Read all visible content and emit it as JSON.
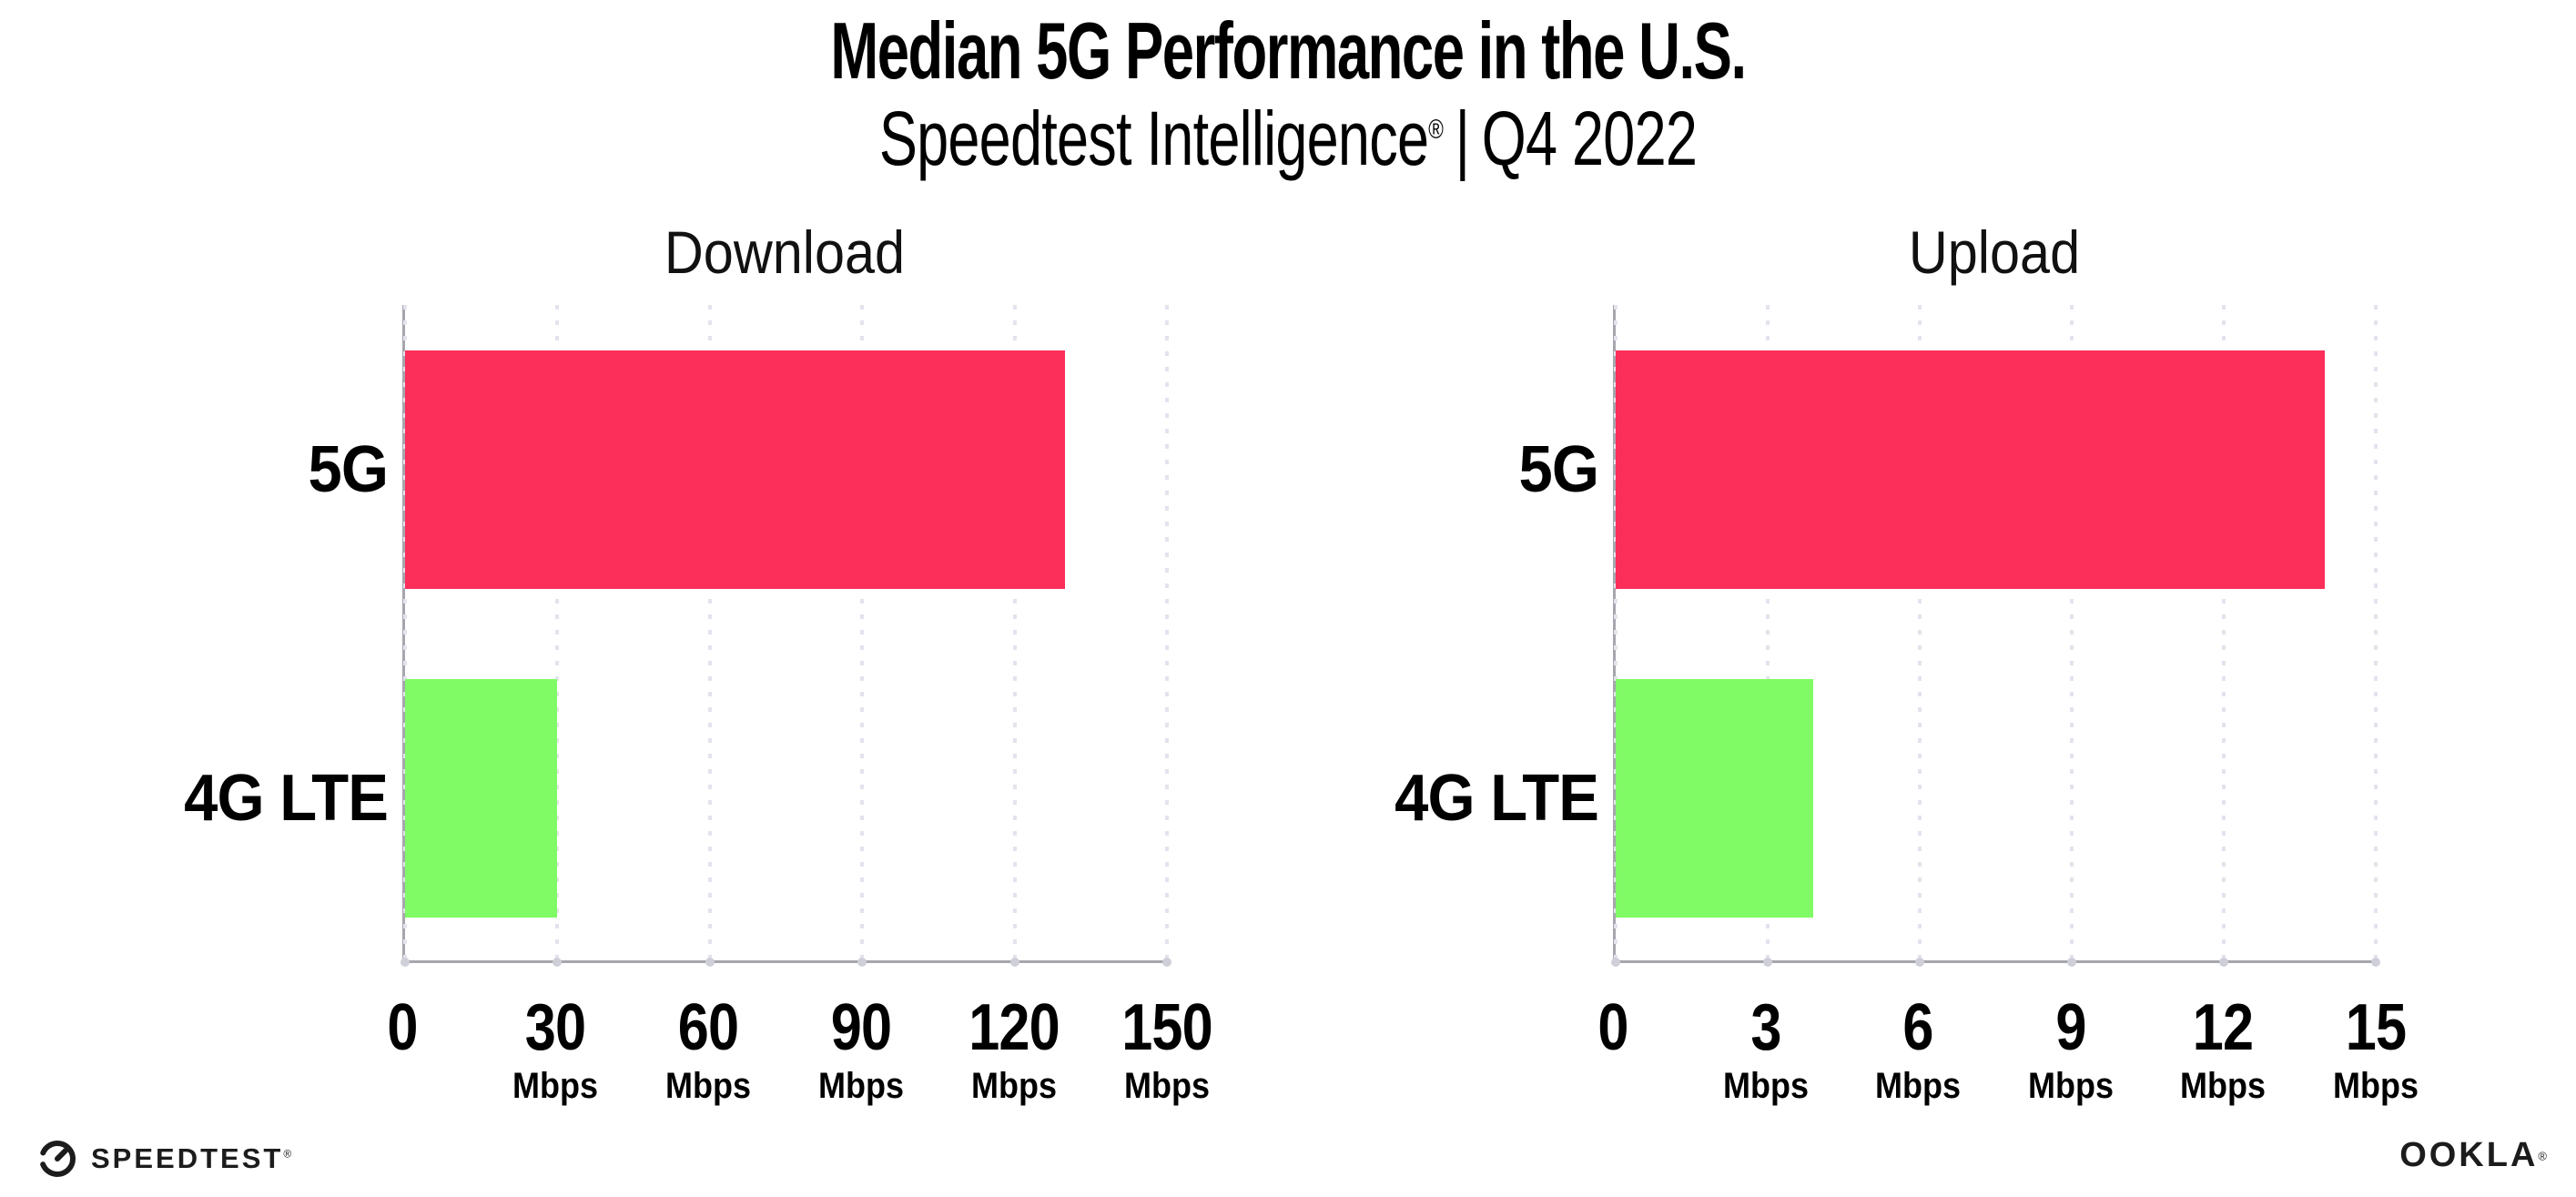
{
  "page": {
    "title": "Median 5G Performance in the U.S.",
    "subtitle_brand": "Speedtest Intelligence",
    "subtitle_reg": "®",
    "subtitle_sep": "|",
    "subtitle_period": "Q4 2022"
  },
  "colors": {
    "bar_5g": "#fc2e5a",
    "bar_4g_lte": "#80fb66",
    "axis": "#a6a6ae",
    "gridline": "#e3e3ee",
    "text": "#000000"
  },
  "chart_data": [
    {
      "type": "bar",
      "orientation": "horizontal",
      "title": "Download",
      "categories": [
        "5G",
        "4G LTE"
      ],
      "values": [
        130,
        30
      ],
      "unit": "Mbps",
      "xlabel": "",
      "ylabel": "",
      "xlim": [
        0,
        150
      ],
      "xticks": [
        0,
        30,
        60,
        90,
        120,
        150
      ],
      "grid": "dotted-vertical",
      "legend": "none",
      "bar_colors": [
        "#fc2e5a",
        "#80fb66"
      ]
    },
    {
      "type": "bar",
      "orientation": "horizontal",
      "title": "Upload",
      "categories": [
        "5G",
        "4G LTE"
      ],
      "values": [
        14,
        3.9
      ],
      "unit": "Mbps",
      "xlabel": "",
      "ylabel": "",
      "xlim": [
        0,
        15
      ],
      "xticks": [
        0,
        3,
        6,
        9,
        12,
        15
      ],
      "grid": "dotted-vertical",
      "legend": "none",
      "bar_colors": [
        "#fc2e5a",
        "#80fb66"
      ]
    }
  ],
  "footer": {
    "speedtest_label": "SPEEDTEST",
    "speedtest_reg": "®",
    "ookla_label": "OOKLA",
    "ookla_reg": "®"
  }
}
